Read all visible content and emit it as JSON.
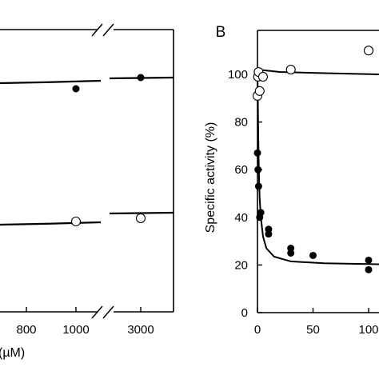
{
  "chart_data": [
    {
      "panel": "A (cropped)",
      "type": "scatter",
      "xlabel": "(µM)",
      "x_tick_labels": [
        "800",
        "1000",
        "3000"
      ],
      "axis_break": true,
      "series": [
        {
          "marker": "filled-circle",
          "points": [
            [
              1000,
              111
            ],
            [
              3000,
              97
            ]
          ],
          "fit": [
            [
              0,
              103
            ],
            [
              1000,
              101
            ],
            [
              3000,
              97
            ]
          ]
        },
        {
          "marker": "open-circle",
          "points": [
            [
              1000,
              277
            ],
            [
              3000,
              273
            ]
          ],
          "fit": [
            [
              0,
              280
            ],
            [
              1000,
              278
            ],
            [
              3000,
              266
            ]
          ]
        }
      ]
    },
    {
      "panel": "B",
      "type": "scatter",
      "panel_label": "B",
      "ylabel": "Specific activity (%)",
      "xlim": [
        0,
        110
      ],
      "ylim": [
        0,
        120
      ],
      "x_ticks": [
        0,
        50,
        100
      ],
      "x_tick_labels": [
        "0",
        "50",
        "100"
      ],
      "y_ticks": [
        0,
        20,
        40,
        60,
        80,
        100
      ],
      "y_tick_labels": [
        "0",
        "20",
        "40",
        "60",
        "80",
        "100"
      ],
      "series": [
        {
          "marker": "open-circle",
          "points": [
            [
              0,
              91
            ],
            [
              0.5,
              99
            ],
            [
              1,
              101
            ],
            [
              2,
              93
            ],
            [
              5,
              99
            ],
            [
              30,
              102
            ],
            [
              100,
              110
            ]
          ]
        },
        {
          "marker": "filled-circle",
          "points": [
            [
              0,
              67
            ],
            [
              0.5,
              60
            ],
            [
              1,
              53
            ],
            [
              2,
              40
            ],
            [
              3,
              42
            ],
            [
              10,
              35
            ],
            [
              10,
              33
            ],
            [
              30,
              27
            ],
            [
              30,
              25
            ],
            [
              50,
              24
            ],
            [
              100,
              22
            ],
            [
              100,
              18
            ]
          ]
        }
      ],
      "fits": [
        {
          "style": "solid",
          "points": [
            [
              0,
              102
            ],
            [
              20,
              101
            ],
            [
              60,
              100.5
            ],
            [
              110,
              100
            ]
          ]
        },
        {
          "style": "solid",
          "points": [
            [
              0,
              100
            ],
            [
              0.3,
              92
            ],
            [
              0.7,
              75
            ],
            [
              1,
              66
            ],
            [
              1.5,
              55
            ],
            [
              2,
              48
            ],
            [
              3,
              40
            ],
            [
              5,
              32
            ],
            [
              8,
              27
            ],
            [
              15,
              23.5
            ],
            [
              30,
              21.5
            ],
            [
              60,
              20.7
            ],
            [
              110,
              20.3
            ]
          ]
        }
      ]
    }
  ]
}
